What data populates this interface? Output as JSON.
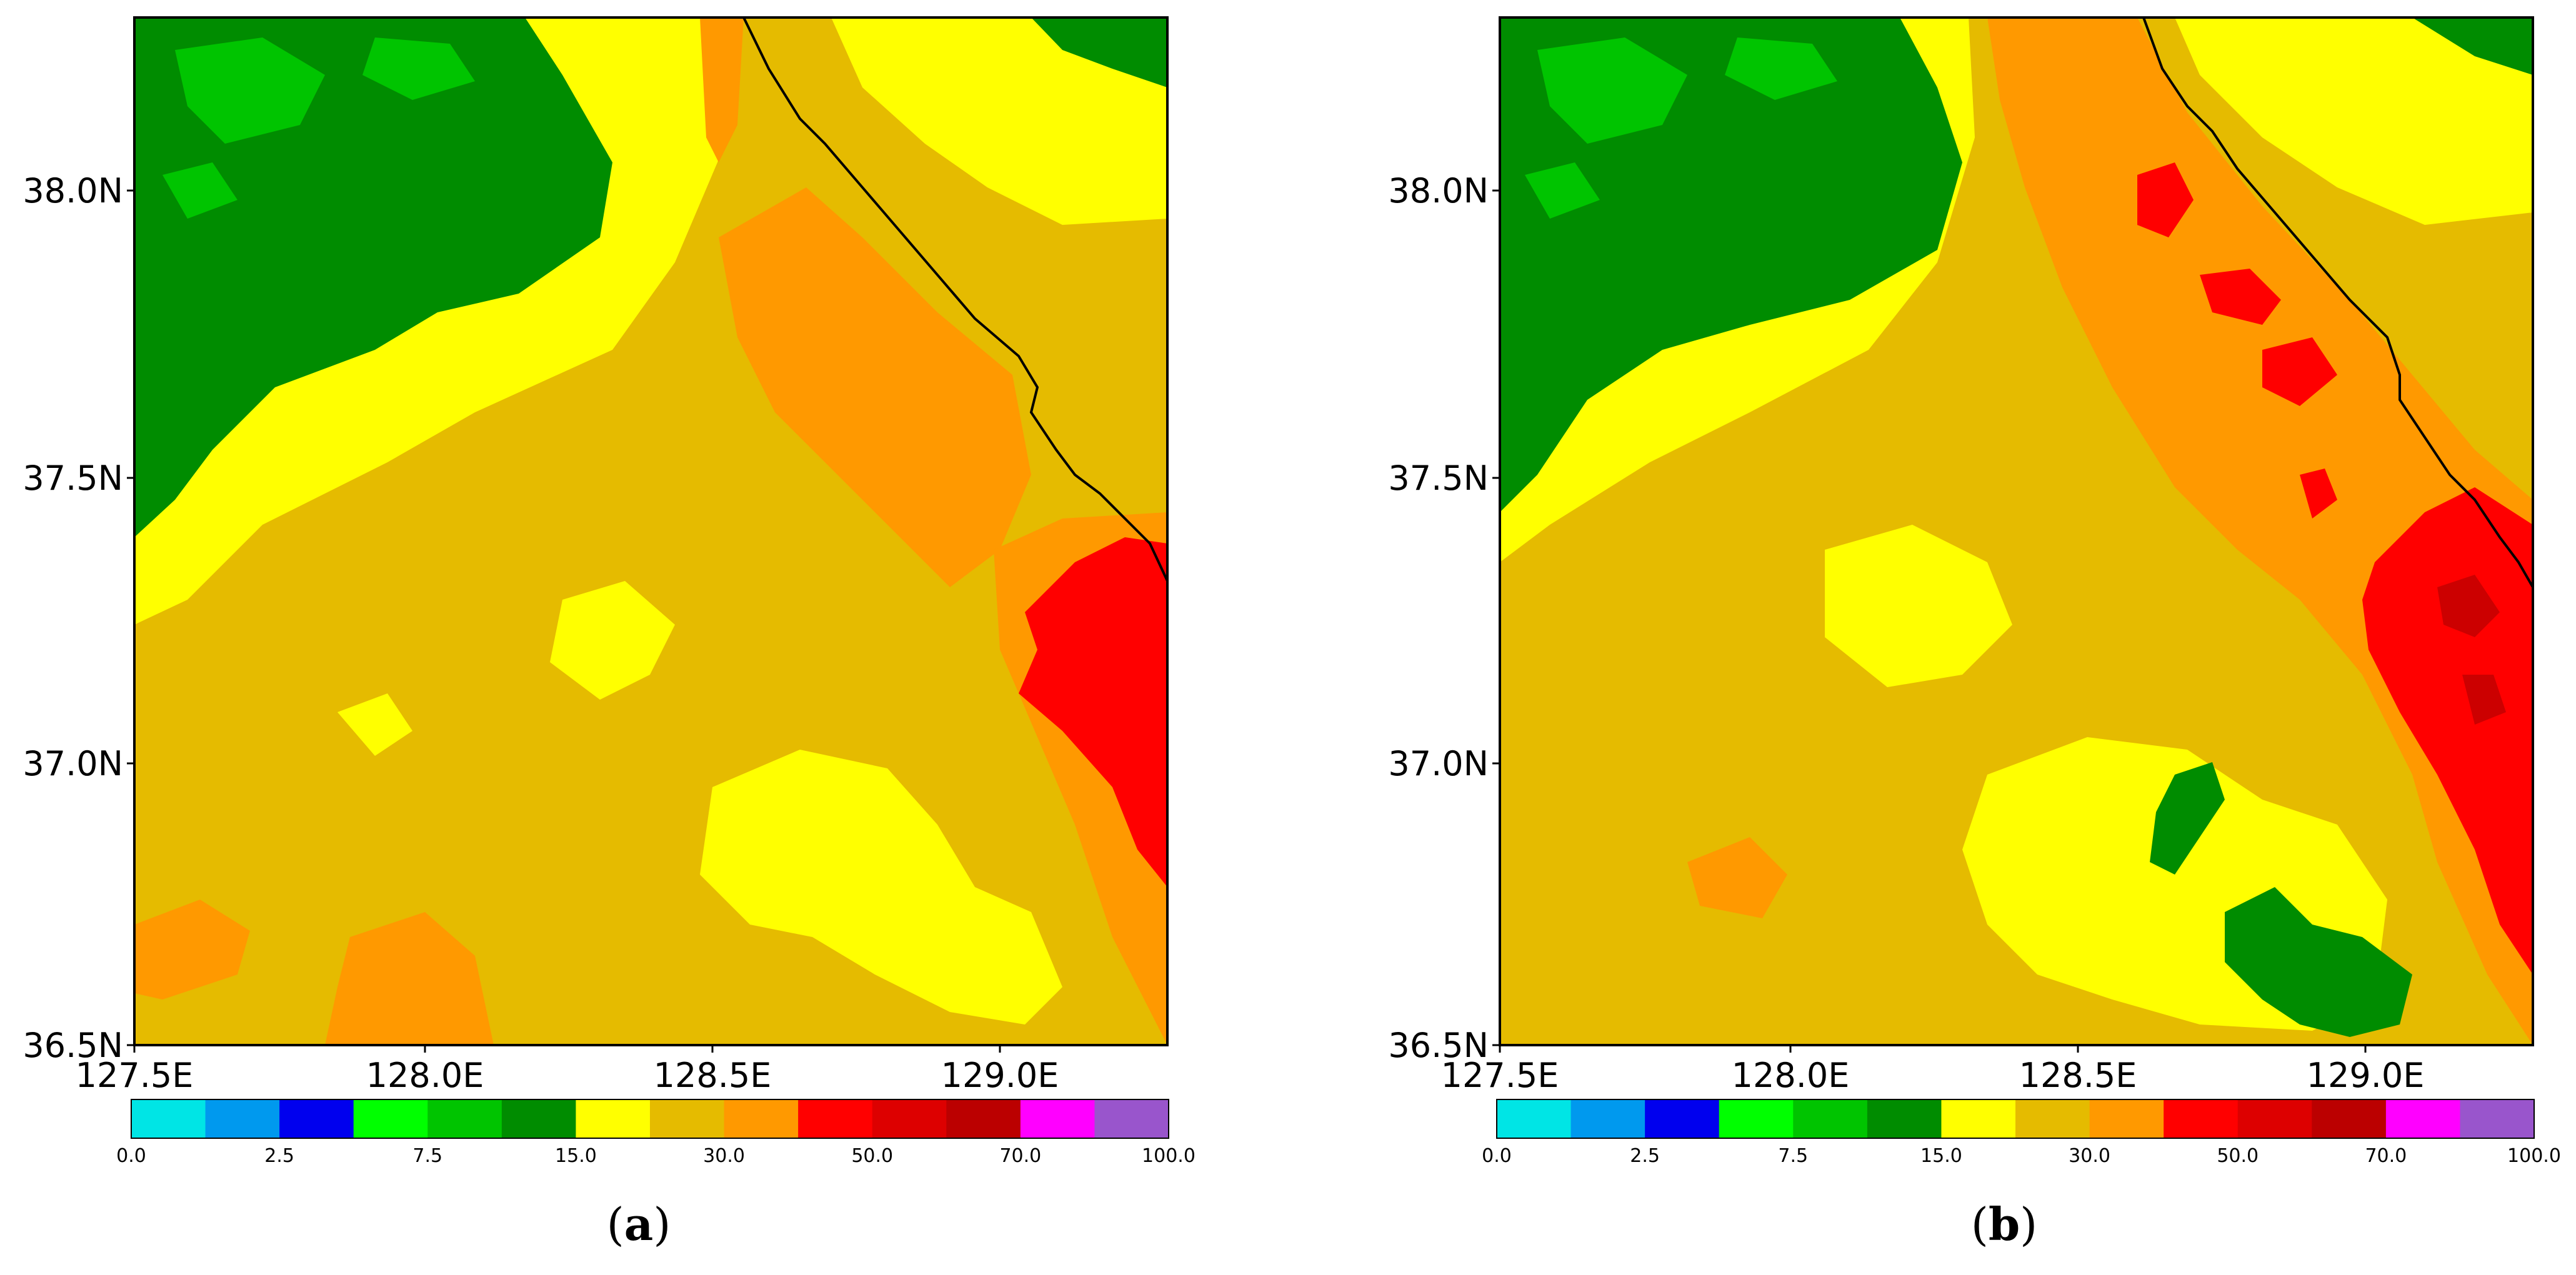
{
  "panels": [
    {
      "id": "a",
      "label_open": "(",
      "label_letter": "a",
      "label_close": ")"
    },
    {
      "id": "b",
      "label_open": "(",
      "label_letter": "b",
      "label_close": ")"
    }
  ],
  "axes": {
    "lon_ticks": [
      "127.5E",
      "128.0E",
      "128.5E",
      "129.0E"
    ],
    "lat_ticks": [
      "38.0N",
      "37.5N",
      "37.0N",
      "36.5N"
    ]
  },
  "colorbar": {
    "colors": [
      "#00e5e5",
      "#0099ee",
      "#0000ee",
      "#00ff00",
      "#00c400",
      "#008c00",
      "#ffff00",
      "#e5bb00",
      "#ff9900",
      "#ff0000",
      "#dd0000",
      "#bb0000",
      "#ff00ff",
      "#9955cc"
    ],
    "tick_labels": [
      "0.0",
      "2.5",
      "7.5",
      "15.0",
      "30.0",
      "50.0",
      "70.0",
      "100.0"
    ]
  },
  "colors": {
    "yellow": "#ffff00",
    "gold": "#e5bb00",
    "orange": "#ff9900",
    "red": "#ff0000",
    "dark_red": "#cc0000",
    "green": "#008c00",
    "mid_green": "#00c400",
    "coastline": "#000000"
  }
}
